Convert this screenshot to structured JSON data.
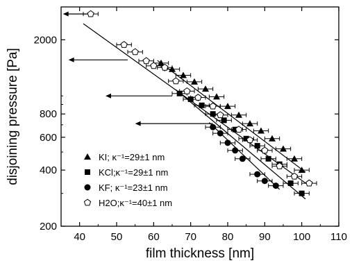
{
  "chart_data": {
    "type": "scatter",
    "xlabel": "film thickness [nm]",
    "ylabel": "disjoining pressure [Pa]",
    "xlim": [
      35,
      110
    ],
    "ylim": [
      200,
      3000
    ],
    "yscale": "log",
    "x_ticks": [
      40,
      50,
      60,
      70,
      80,
      90,
      100,
      110
    ],
    "y_ticks": [
      200,
      400,
      600,
      800,
      2000
    ],
    "legend_position": "bottom-left",
    "grid": false,
    "series": [
      {
        "name": "KI; κ⁻¹=29±1 nm",
        "marker": "triangle",
        "x": [
          62,
          65,
          68,
          71,
          74,
          77,
          80,
          83,
          86,
          89,
          92,
          95,
          98,
          100
        ],
        "y": [
          1500,
          1390,
          1290,
          1190,
          1090,
          990,
          880,
          790,
          710,
          650,
          590,
          520,
          460,
          400
        ],
        "fit": [
          [
            61,
            1550
          ],
          [
            101,
            390
          ]
        ]
      },
      {
        "name": "KCl;κ⁻¹=29±1 nm",
        "marker": "square",
        "x": [
          67,
          70,
          73,
          76,
          79,
          82,
          85,
          88,
          91,
          94,
          97,
          100
        ],
        "y": [
          1030,
          960,
          890,
          800,
          740,
          660,
          590,
          540,
          460,
          430,
          340,
          300
        ],
        "fit": [
          [
            66,
            1080
          ],
          [
            101,
            280
          ]
        ]
      },
      {
        "name": "KF; κ⁻¹=23±1 nm",
        "marker": "circle",
        "x": [
          76,
          78,
          80,
          82,
          84,
          88,
          90,
          93
        ],
        "y": [
          680,
          630,
          560,
          510,
          460,
          380,
          350,
          330
        ],
        "fit": [
          [
            75,
            720
          ],
          [
            94,
            315
          ]
        ]
      },
      {
        "name": "H2O;κ⁻¹=40±1 nm",
        "marker": "pentagon",
        "x": [
          43,
          52,
          55,
          58,
          60,
          63,
          66,
          69,
          72,
          76,
          78,
          83,
          86,
          90,
          94,
          98,
          102
        ],
        "y": [
          2750,
          1880,
          1720,
          1540,
          1450,
          1420,
          1200,
          1060,
          980,
          880,
          790,
          660,
          580,
          510,
          420,
          370,
          340
        ],
        "fit": [
          [
            41,
            2440
          ],
          [
            102,
            330
          ]
        ]
      }
    ],
    "arrows": [
      {
        "x_from": 42,
        "x_to": 35.5,
        "y": 2750
      },
      {
        "x_from": 53,
        "x_to": 37,
        "y": 1560
      },
      {
        "x_from": 65,
        "x_to": 47,
        "y": 1000
      },
      {
        "x_from": 76,
        "x_to": 55,
        "y": 710
      }
    ]
  }
}
